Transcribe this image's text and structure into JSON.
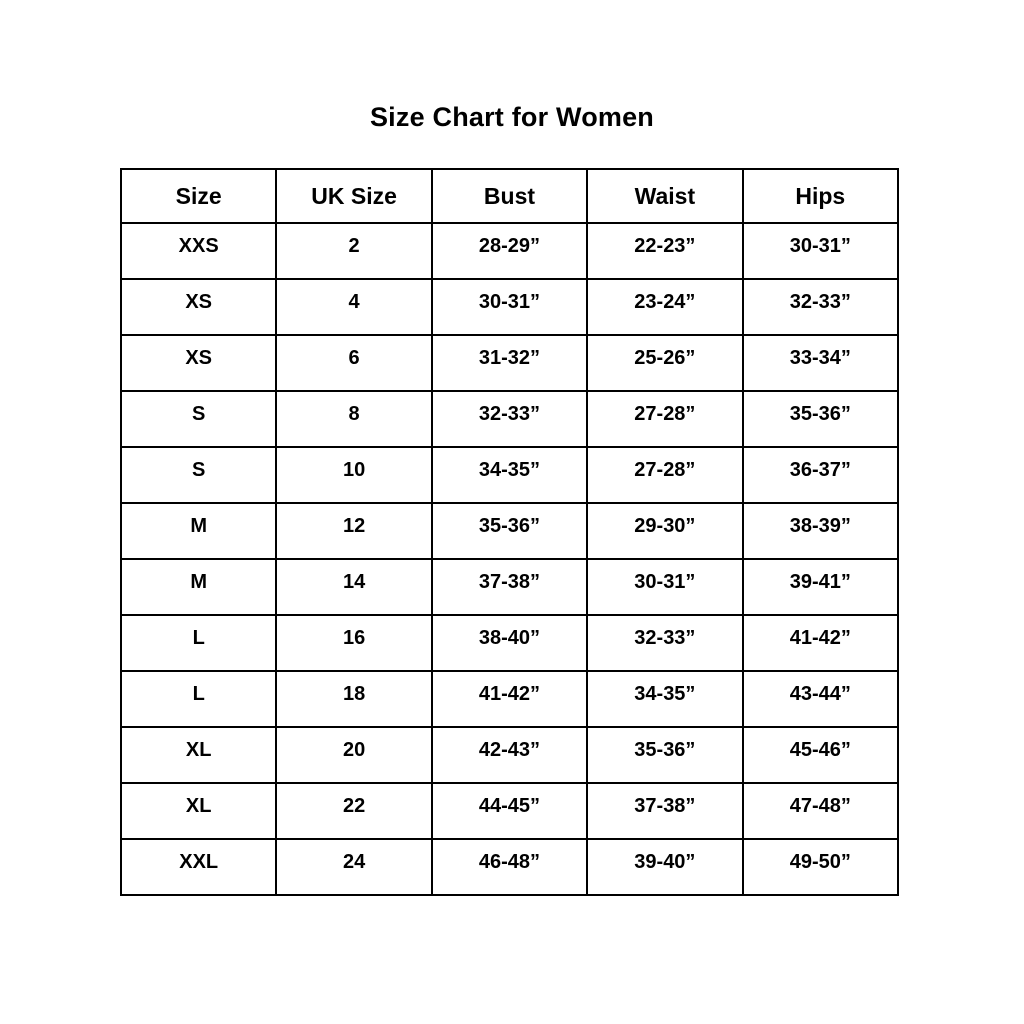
{
  "title": "Size Chart for Women",
  "table": {
    "headers": [
      "Size",
      "UK Size",
      "Bust",
      "Waist",
      "Hips"
    ],
    "rows": [
      {
        "cells": [
          "XXS",
          "2",
          "28-29”",
          "22-23”",
          "30-31”"
        ]
      },
      {
        "cells": [
          "XS",
          "4",
          "30-31”",
          "23-24”",
          "32-33”"
        ]
      },
      {
        "cells": [
          "XS",
          "6",
          "31-32”",
          "25-26”",
          "33-34”"
        ]
      },
      {
        "cells": [
          "S",
          "8",
          "32-33”",
          "27-28”",
          "35-36”"
        ]
      },
      {
        "cells": [
          "S",
          "10",
          "34-35”",
          "27-28”",
          "36-37”"
        ]
      },
      {
        "cells": [
          "M",
          "12",
          "35-36”",
          "29-30”",
          "38-39”"
        ]
      },
      {
        "cells": [
          "M",
          "14",
          "37-38”",
          "30-31”",
          "39-41”"
        ]
      },
      {
        "cells": [
          "L",
          "16",
          "38-40”",
          "32-33”",
          "41-42”"
        ]
      },
      {
        "cells": [
          "L",
          "18",
          "41-42”",
          "34-35”",
          "43-44”"
        ]
      },
      {
        "cells": [
          "XL",
          "20",
          "42-43”",
          "35-36”",
          "45-46”"
        ]
      },
      {
        "cells": [
          "XL",
          "22",
          "44-45”",
          "37-38”",
          "47-48”"
        ]
      },
      {
        "cells": [
          "XXL",
          "24",
          "46-48”",
          "39-40”",
          "49-50”"
        ]
      }
    ]
  },
  "colors": {
    "text": "#000000",
    "background": "#ffffff",
    "border": "#000000"
  }
}
